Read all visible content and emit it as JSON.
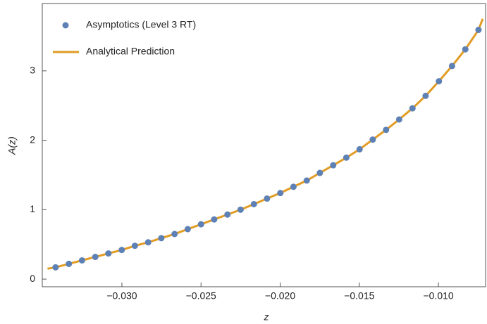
{
  "chart_data": {
    "type": "line",
    "xlabel": "z",
    "ylabel": "A(z)",
    "xlim": [
      -0.03503,
      -0.00702
    ],
    "ylim": [
      -0.11,
      3.97
    ],
    "xticks": [
      {
        "value": -0.03,
        "label": "−0.030"
      },
      {
        "value": -0.025,
        "label": "−0.025"
      },
      {
        "value": -0.02,
        "label": "−0.020"
      },
      {
        "value": -0.015,
        "label": "−0.015"
      },
      {
        "value": -0.01,
        "label": "−0.010"
      }
    ],
    "yticks": [
      0,
      1,
      2,
      3
    ],
    "legend": "upper left",
    "series": [
      {
        "name": "Asymptotics (Level 3 RT)",
        "color": "#5e81b5",
        "type": "scatter",
        "x": [
          -0.03419,
          -0.03335,
          -0.03252,
          -0.03168,
          -0.03085,
          -0.03001,
          -0.02918,
          -0.02834,
          -0.02751,
          -0.02667,
          -0.02584,
          -0.025,
          -0.02417,
          -0.02333,
          -0.0225,
          -0.02166,
          -0.02083,
          -0.01999,
          -0.01916,
          -0.01832,
          -0.01749,
          -0.01665,
          -0.01582,
          -0.01498,
          -0.01415,
          -0.01331,
          -0.01248,
          -0.01164,
          -0.01081,
          -0.00997,
          -0.00914,
          -0.0083,
          -0.00747
        ],
        "values": [
          0.17,
          0.22,
          0.27,
          0.32,
          0.37,
          0.42,
          0.48,
          0.53,
          0.59,
          0.65,
          0.72,
          0.79,
          0.86,
          0.93,
          1.0,
          1.08,
          1.16,
          1.24,
          1.33,
          1.42,
          1.53,
          1.64,
          1.75,
          1.87,
          2.01,
          2.15,
          2.3,
          2.46,
          2.64,
          2.85,
          3.07,
          3.31,
          3.59
        ]
      },
      {
        "name": "Analytical Prediction",
        "color": "#e19c24",
        "type": "line",
        "x": [
          -0.0347,
          -0.03419,
          -0.03335,
          -0.03252,
          -0.03168,
          -0.03085,
          -0.03001,
          -0.02918,
          -0.02834,
          -0.02751,
          -0.02667,
          -0.02584,
          -0.025,
          -0.02417,
          -0.02333,
          -0.0225,
          -0.02166,
          -0.02083,
          -0.01999,
          -0.01916,
          -0.01832,
          -0.01749,
          -0.01665,
          -0.01582,
          -0.01498,
          -0.01415,
          -0.01331,
          -0.01248,
          -0.01164,
          -0.01081,
          -0.00997,
          -0.00914,
          -0.0083,
          -0.00747,
          -0.0072
        ],
        "values": [
          0.15,
          0.17,
          0.22,
          0.27,
          0.32,
          0.37,
          0.42,
          0.48,
          0.53,
          0.59,
          0.65,
          0.72,
          0.79,
          0.86,
          0.93,
          1.0,
          1.08,
          1.16,
          1.24,
          1.33,
          1.42,
          1.53,
          1.64,
          1.75,
          1.87,
          2.01,
          2.15,
          2.3,
          2.46,
          2.64,
          2.85,
          3.07,
          3.31,
          3.59,
          3.75
        ]
      }
    ]
  }
}
